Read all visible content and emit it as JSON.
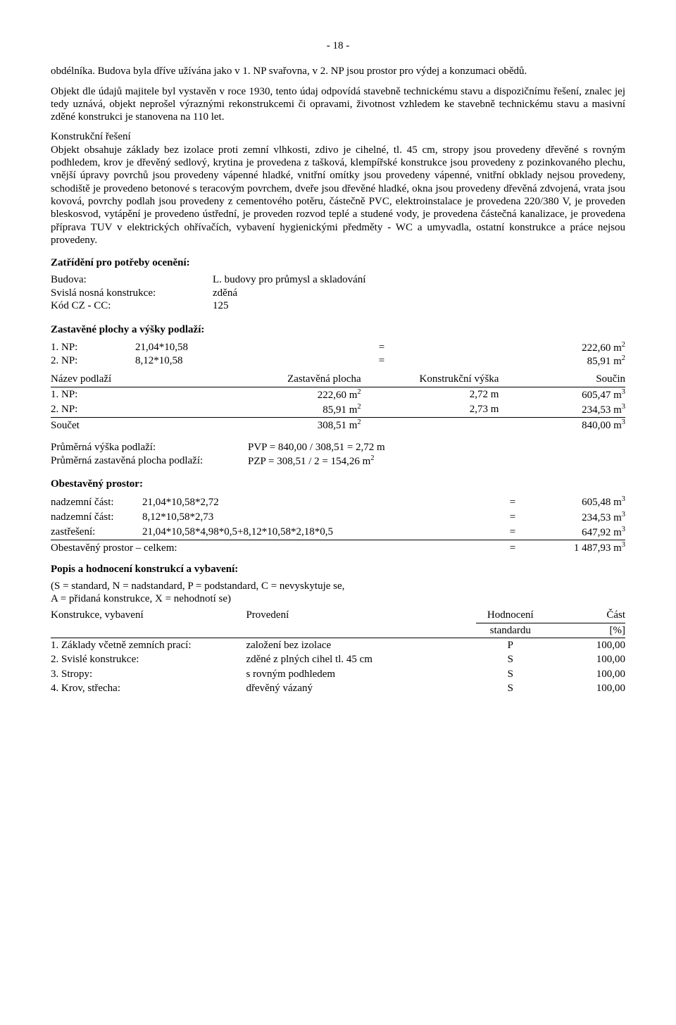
{
  "page_number": "- 18 -",
  "para1": "obdélníka. Budova byla dříve užívána jako v 1. NP svařovna, v 2. NP jsou prostor pro výdej a konzumaci obědů.",
  "para2": "Objekt dle údajů majitele byl vystavěn v roce 1930, tento údaj odpovídá stavebně technickému stavu a dispozičnímu řešení, znalec jej tedy uznává, objekt neprošel výraznými rekonstrukcemi či opravami, životnost vzhledem ke stavebně technickému stavu a masivní zděné konstrukci je stanovena na 110 let.",
  "para3_head": "Konstrukční řešení",
  "para3": "Objekt obsahuje základy bez izolace proti zemní vlhkosti, zdivo je cihelné, tl. 45 cm, stropy jsou provedeny dřevěné s rovným podhledem, krov je dřevěný sedlový, krytina je provedena z tašková, klempířské konstrukce jsou provedeny z pozinkovaného plechu, vnější úpravy povrchů jsou provedeny vápenné hladké, vnitřní omítky jsou provedeny vápenné, vnitřní obklady nejsou provedeny, schodiště je provedeno betonové s teracovým povrchem, dveře jsou dřevěné hladké, okna jsou provedeny dřevěná zdvojená, vrata jsou kovová, povrchy podlah jsou provedeny z cementového potěru, částečně PVC, elektroinstalace je provedena 220/380 V, je proveden bleskosvod, vytápění je provedeno ústřední, je proveden rozvod teplé a studené vody, je provedena částečná kanalizace, je provedena příprava TUV v elektrických ohřívačích, vybavení hygienickými předměty - WC a umyvadla, ostatní konstrukce a práce nejsou provedeny.",
  "zatrideni_heading": "Zatřídění pro potřeby ocenění:",
  "zatrideni": [
    {
      "k": "Budova:",
      "v": "L. budovy pro průmysl a skladování"
    },
    {
      "k": "Svislá nosná konstrukce:",
      "v": "zděná"
    },
    {
      "k": "Kód CZ - CC:",
      "v": "125"
    }
  ],
  "zastavene_heading": "Zastavěné plochy a výšky podlaží:",
  "area_rows": [
    {
      "label": "1. NP:",
      "expr": "21,04*10,58",
      "eq": "=",
      "val": "222,60 m",
      "sup": "2"
    },
    {
      "label": "2. NP:",
      "expr": "8,12*10,58",
      "eq": "=",
      "val": "85,91 m",
      "sup": "2"
    }
  ],
  "floor_head": {
    "a": "Název podlaží",
    "b": "Zastavěná plocha",
    "c": "Konstrukční výška",
    "d": "Součin"
  },
  "floor_rows": [
    {
      "a": "1. NP:",
      "b": "222,60 m",
      "bs": "2",
      "c": "2,72 m",
      "d": "605,47 m",
      "ds": "3"
    },
    {
      "a": "2. NP:",
      "b": "85,91 m",
      "bs": "2",
      "c": "2,73 m",
      "d": "234,53 m",
      "ds": "3"
    },
    {
      "a": "Součet",
      "b": "308,51 m",
      "bs": "2",
      "c": "",
      "d": "840,00 m",
      "ds": "3"
    }
  ],
  "pvp_label": "Průměrná výška podlaží:",
  "pvp_val": "PVP = 840,00 / 308,51 = 2,72 m",
  "pzp_label": "Průměrná zastavěná plocha podlaží:",
  "pzp_val_a": "PZP = 308,51 / 2 = 154,26 m",
  "pzp_val_sup": "2",
  "obest_heading": "Obestavěný prostor:",
  "obest_rows": [
    {
      "a": "nadzemní část:",
      "b": "21,04*10,58*2,72",
      "eq": "=",
      "d": "605,48 m",
      "ds": "3"
    },
    {
      "a": "nadzemní část:",
      "b": "8,12*10,58*2,73",
      "eq": "=",
      "d": "234,53 m",
      "ds": "3"
    },
    {
      "a": "zastřešení:",
      "b": "21,04*10,58*4,98*0,5+8,12*10,58*2,18*0,5",
      "eq": "=",
      "d": "647,92 m",
      "ds": "3"
    }
  ],
  "obest_total_label": "Obestavěný prostor – celkem:",
  "obest_total_eq": "=",
  "obest_total_val": "1 487,93 m",
  "obest_total_sup": "3",
  "popis_heading": "Popis a hodnocení konstrukcí a vybavení:",
  "legend1": "(S = standard, N = nadstandard, P = podstandard, C = nevyskytuje se,",
  "legend2": "A = přidaná konstrukce, X = nehodnotí se)",
  "kv_head": {
    "a": "Konstrukce, vybavení",
    "b": "Provedení",
    "c1": "Hodnocení",
    "c2": "standardu",
    "d1": "Část",
    "d2": "[%]"
  },
  "kv_rows": [
    {
      "a": "1. Základy včetně zemních prací:",
      "b": "založení bez izolace",
      "c": "P",
      "d": "100,00"
    },
    {
      "a": "2. Svislé konstrukce:",
      "b": "zděné z plných cihel tl. 45 cm",
      "c": "S",
      "d": "100,00"
    },
    {
      "a": "3. Stropy:",
      "b": "s rovným podhledem",
      "c": "S",
      "d": "100,00"
    },
    {
      "a": "4. Krov, střecha:",
      "b": "dřevěný vázaný",
      "c": "S",
      "d": "100,00"
    }
  ]
}
